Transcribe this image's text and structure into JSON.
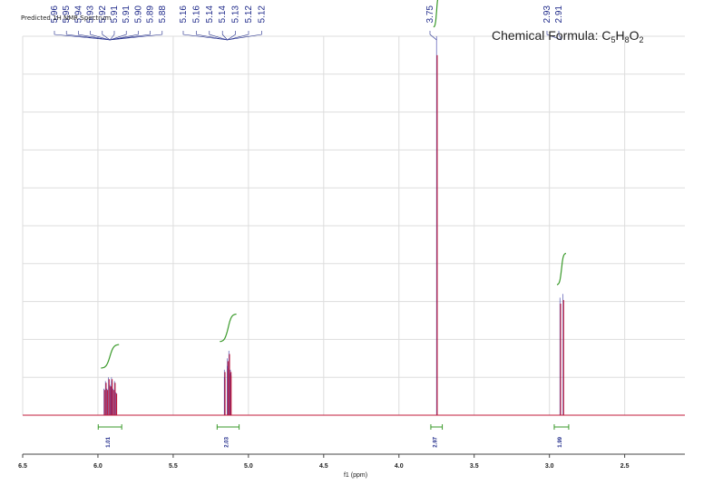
{
  "chart_data": {
    "type": "line",
    "title": "Predicted 1H NMR Spectrum",
    "formula": {
      "prefix": "Chemical Formula: C",
      "c": "5",
      "h_label": "H",
      "h": "8",
      "o_label": "O",
      "o": "2"
    },
    "xlabel": "f1 (ppm)",
    "xlim": [
      6.5,
      2.1
    ],
    "x_ticks": [
      "6.5",
      "6.0",
      "5.5",
      "5.0",
      "4.5",
      "4.0",
      "3.5",
      "3.0",
      "2.5"
    ],
    "grid": "horizontal",
    "peak_labels": [
      "5.96",
      "5.95",
      "5.94",
      "5.93",
      "5.92",
      "5.91",
      "5.91",
      "5.90",
      "5.89",
      "5.88",
      "5.16",
      "5.16",
      "5.14",
      "5.14",
      "5.13",
      "5.12",
      "5.12",
      "3.75",
      "2.93",
      "2.91"
    ],
    "multiplets": [
      {
        "center": 5.92,
        "lines": [
          5.96,
          5.95,
          5.94,
          5.93,
          5.92,
          5.91,
          5.91,
          5.9,
          5.89,
          5.88
        ],
        "heights": [
          0.07,
          0.09,
          0.07,
          0.1,
          0.08,
          0.1,
          0.09,
          0.07,
          0.09,
          0.06
        ],
        "integral": "1.01",
        "integral_range": [
          5.98,
          5.86
        ]
      },
      {
        "center": 5.14,
        "lines": [
          5.16,
          5.16,
          5.14,
          5.14,
          5.13,
          5.12,
          5.12
        ],
        "heights": [
          0.12,
          0.1,
          0.15,
          0.13,
          0.17,
          0.12,
          0.11
        ],
        "integral": "2.03",
        "integral_range": [
          5.19,
          5.08
        ]
      },
      {
        "center": 3.75,
        "lines": [
          3.75
        ],
        "heights": [
          1.0
        ],
        "integral": "2.97",
        "integral_range": [
          3.77,
          3.73
        ]
      },
      {
        "center": 2.92,
        "lines": [
          2.93,
          2.91
        ],
        "heights": [
          0.31,
          0.32
        ],
        "integral": "1.99",
        "integral_range": [
          2.95,
          2.89
        ]
      }
    ],
    "colors": {
      "spectrum": "#c0183a",
      "integral_curve": "#3a9a2a",
      "label": "#1f2a8a",
      "grid": "#dddddd"
    }
  }
}
